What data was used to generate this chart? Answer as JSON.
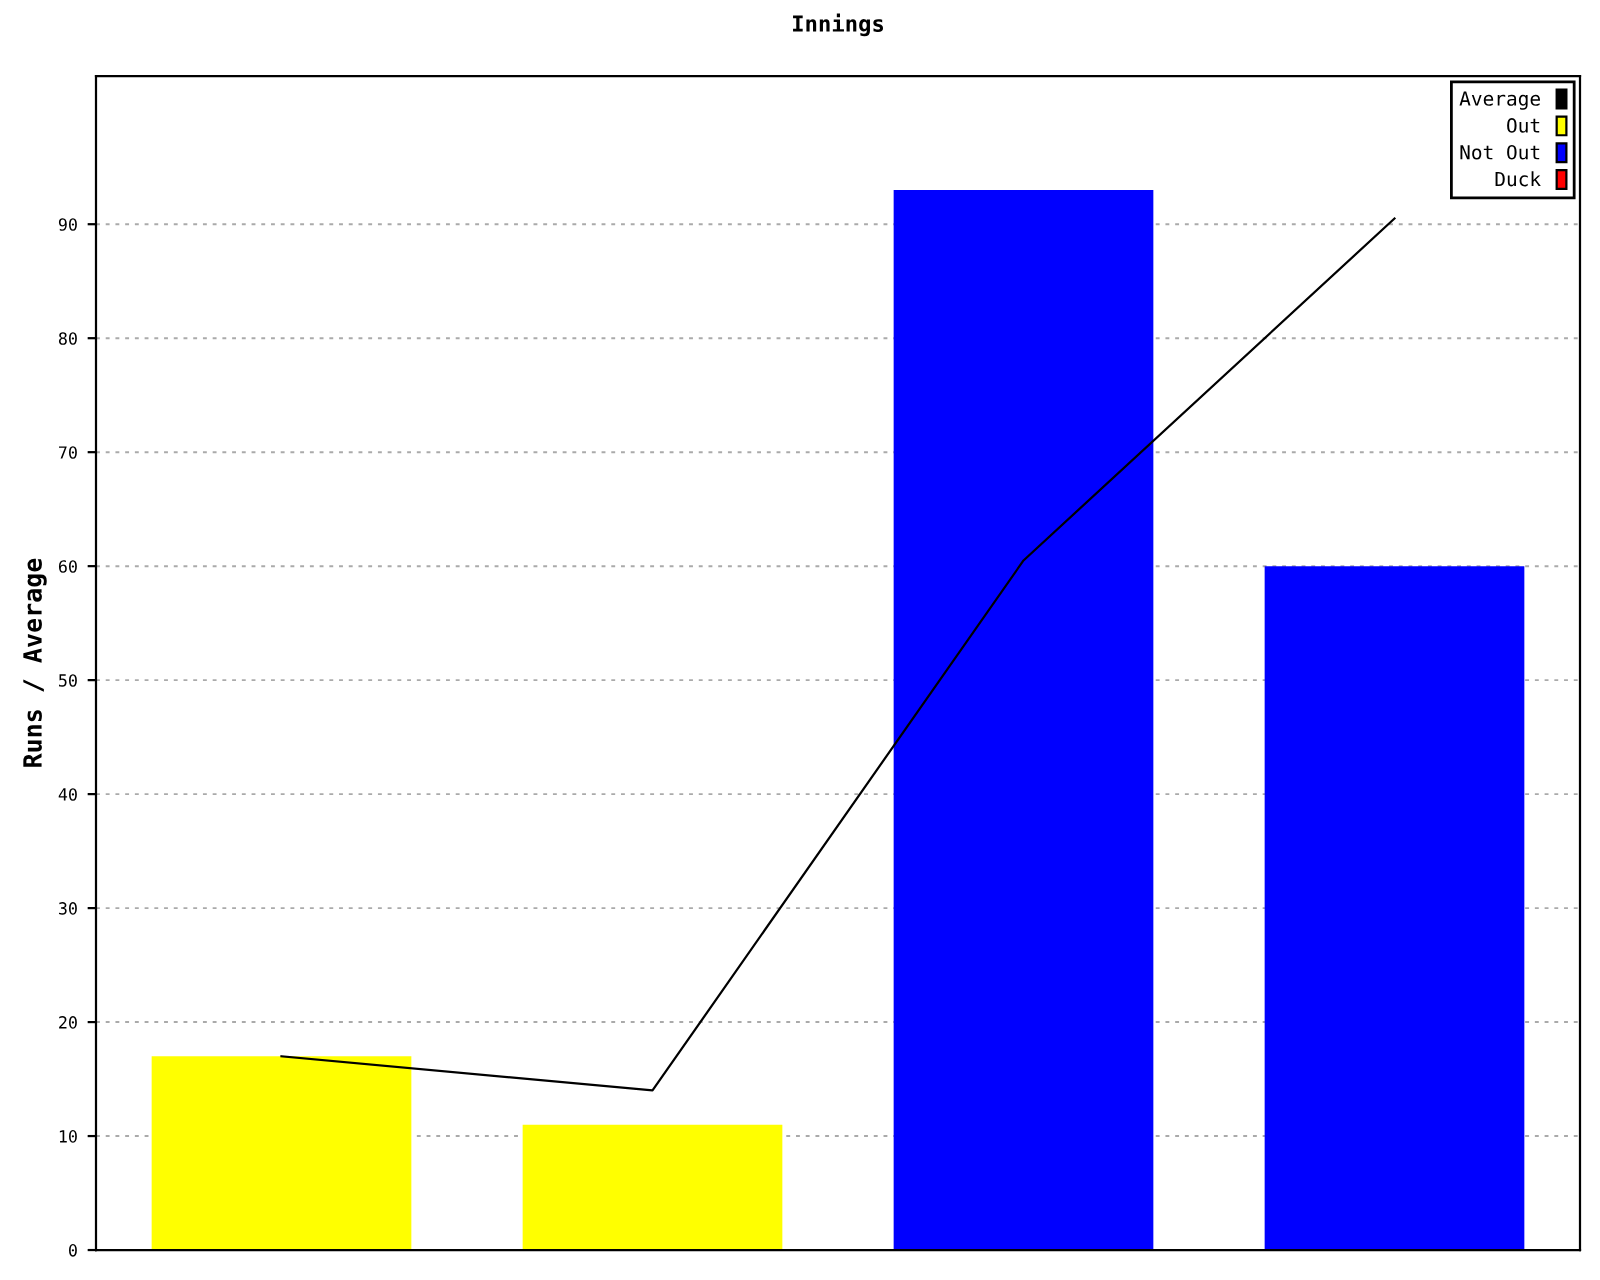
{
  "chart_data": {
    "type": "bar",
    "title": "Innings",
    "ylabel": "Runs / Average",
    "categories": [
      null,
      null,
      null,
      null
    ],
    "series": [
      {
        "name": "Average",
        "type": "line",
        "color": "#000000",
        "values": [
          17,
          14,
          60.5,
          90.5
        ]
      },
      {
        "name": "Out",
        "color": "#ffff00",
        "values": [
          17,
          11,
          null,
          null
        ]
      },
      {
        "name": "Not Out",
        "color": "#0000ff",
        "values": [
          null,
          null,
          93,
          60
        ]
      },
      {
        "name": "Duck",
        "color": "#ff0000",
        "values": [
          null,
          null,
          null,
          null
        ]
      }
    ],
    "ylim": [
      0,
      103
    ],
    "yticks": [
      0,
      10,
      20,
      30,
      40,
      50,
      60,
      70,
      80,
      90
    ],
    "grid": "y",
    "legend": "top right",
    "tick_labels": "y",
    "marker": "none",
    "line_style": "solid"
  }
}
